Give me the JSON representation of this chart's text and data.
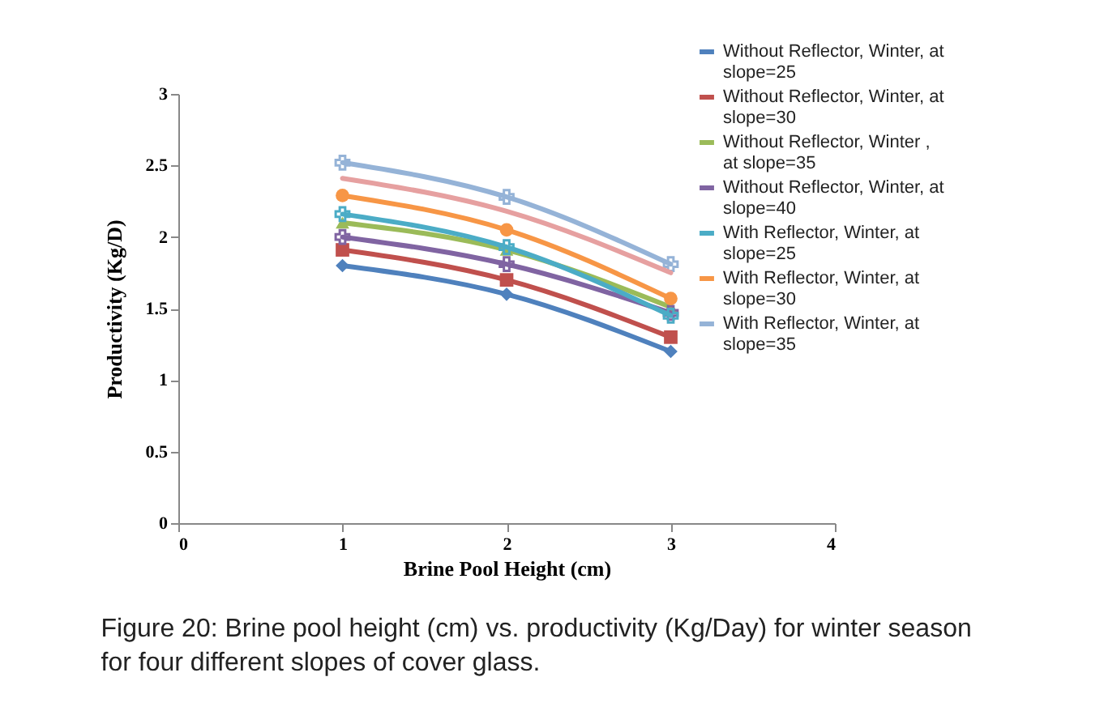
{
  "chart_data": {
    "type": "line",
    "xlabel": "Brine Pool Height (cm)",
    "ylabel": "Productivity  (Kg/D)",
    "x": [
      1,
      2,
      3
    ],
    "xlim": [
      0,
      4
    ],
    "xticks": [
      0,
      1,
      2,
      3,
      4
    ],
    "ylim": [
      0,
      3
    ],
    "yticks": [
      0,
      0.5,
      1,
      1.5,
      2,
      2.5,
      3
    ],
    "legend": "top right",
    "grid": false,
    "series": [
      {
        "name": "Without Reflector, Winter, at slope=25",
        "color": "#4f81bd",
        "marker": "diamond",
        "values": [
          1.8,
          1.6,
          1.2
        ]
      },
      {
        "name": "Without Reflector, Winter, at slope=30",
        "color": "#c0504d",
        "marker": "square",
        "values": [
          1.91,
          1.7,
          1.3
        ]
      },
      {
        "name": "Without Reflector, Winter , at slope=35",
        "color": "#9bbb59",
        "marker": "triangle",
        "values": [
          2.1,
          1.91,
          1.51
        ]
      },
      {
        "name": "Without Reflector, Winter, at slope=40",
        "color": "#8064a2",
        "marker": "cross",
        "values": [
          2.0,
          1.81,
          1.47
        ]
      },
      {
        "name": "With Reflector, Winter, at slope=25",
        "color": "#4bacc6",
        "marker": "cross",
        "values": [
          2.16,
          1.93,
          1.45
        ]
      },
      {
        "name": "With Reflector, Winter, at slope=30",
        "color": "#f79646",
        "marker": "circle",
        "values": [
          2.29,
          2.05,
          1.57
        ]
      },
      {
        "name": "With Reflector, Winter, at slope=35",
        "color": "#95b3d7",
        "marker": "cross",
        "values": [
          2.52,
          2.28,
          1.81
        ]
      },
      {
        "color": "#e6a0a0",
        "marker": "none",
        "values": [
          2.41,
          2.18,
          1.75
        ]
      }
    ],
    "annotations": [
      "Figure 20: Brine pool height (cm) vs. productivity (Kg/Day) for winter season for four different slopes of cover glass."
    ]
  }
}
